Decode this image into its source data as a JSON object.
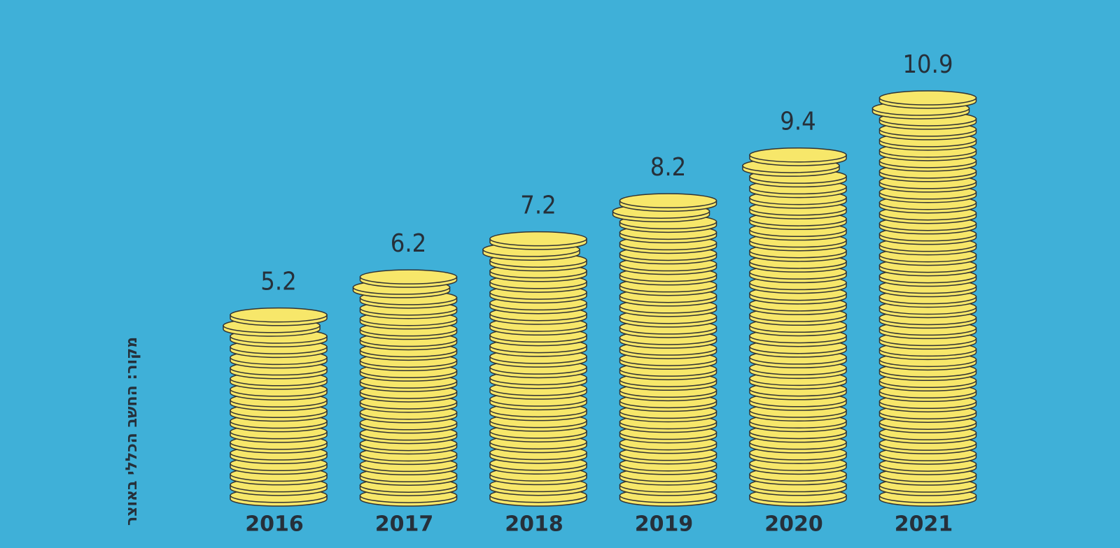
{
  "chart_data": {
    "type": "bar",
    "categories": [
      "2016",
      "2017",
      "2018",
      "2019",
      "2020",
      "2021"
    ],
    "values": [
      5.2,
      6.2,
      7.2,
      8.2,
      9.4,
      10.9
    ],
    "color": "#f7e76a",
    "source": "מקור: החשב הכללי באוצר"
  }
}
